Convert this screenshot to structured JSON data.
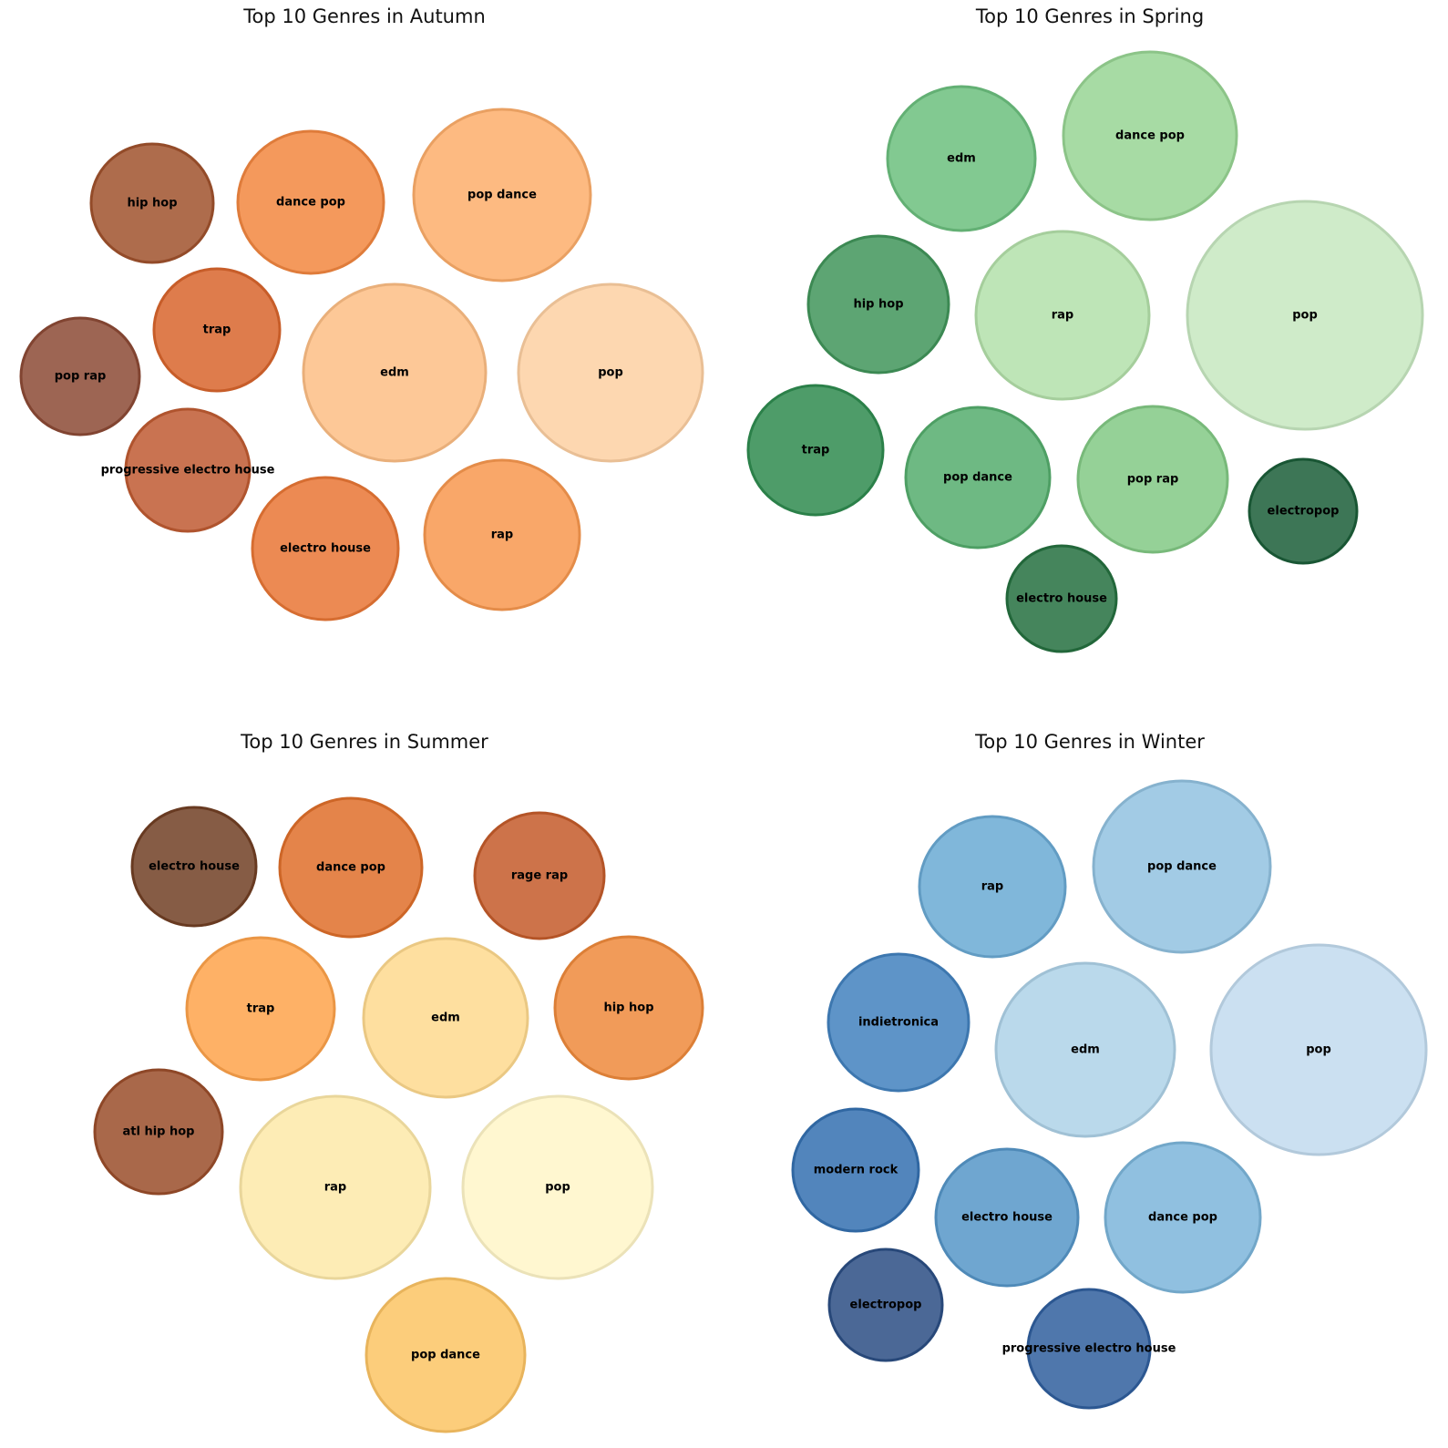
{
  "chart_data": [
    {
      "type": "bubble",
      "title": "Top 10 Genres in Autumn",
      "bubbles": [
        {
          "label": "hip hop",
          "color": "#a0522d"
        },
        {
          "label": "dance pop",
          "color": "#f28740"
        },
        {
          "label": "pop dance",
          "color": "#fdae6b"
        },
        {
          "label": "trap",
          "color": "#d8652d"
        },
        {
          "label": "pop rap",
          "color": "#8c4a35"
        },
        {
          "label": "edm",
          "color": "#fdbe85"
        },
        {
          "label": "pop",
          "color": "#fdd0a2"
        },
        {
          "label": "progressive electro house",
          "color": "#bf5b32"
        },
        {
          "label": "electro house",
          "color": "#e97635"
        },
        {
          "label": "rap",
          "color": "#f8984f"
        }
      ]
    },
    {
      "type": "bubble",
      "title": "Top 10 Genres in Spring",
      "bubbles": [
        {
          "label": "edm",
          "color": "#6cbf7e"
        },
        {
          "label": "dance pop",
          "color": "#98d594"
        },
        {
          "label": "hip hop",
          "color": "#41955a"
        },
        {
          "label": "rap",
          "color": "#b3e0aa"
        },
        {
          "label": "pop",
          "color": "#c7e8c0"
        },
        {
          "label": "trap",
          "color": "#2f8b4f"
        },
        {
          "label": "pop dance",
          "color": "#55ad6d"
        },
        {
          "label": "pop rap",
          "color": "#82c985"
        },
        {
          "label": "electropop",
          "color": "#1b5e38"
        },
        {
          "label": "electro house",
          "color": "#25703f"
        }
      ]
    },
    {
      "type": "bubble",
      "title": "Top 10 Genres in Summer",
      "bubbles": [
        {
          "label": "electro house",
          "color": "#713f24"
        },
        {
          "label": "dance pop",
          "color": "#df6f2a"
        },
        {
          "label": "rage rap",
          "color": "#c45b2a"
        },
        {
          "label": "trap",
          "color": "#fea34b"
        },
        {
          "label": "edm",
          "color": "#fed98e"
        },
        {
          "label": "hip hop",
          "color": "#ef8a3c"
        },
        {
          "label": "atl hip hop",
          "color": "#9a4d2a"
        },
        {
          "label": "rap",
          "color": "#fde9a8"
        },
        {
          "label": "pop",
          "color": "#fff6c8"
        },
        {
          "label": "pop dance",
          "color": "#fcc464"
        }
      ]
    },
    {
      "type": "bubble",
      "title": "Top 10 Genres in Winter",
      "bubbles": [
        {
          "label": "rap",
          "color": "#6aaad4"
        },
        {
          "label": "pop dance",
          "color": "#92c2e0"
        },
        {
          "label": "indietronica",
          "color": "#4281be"
        },
        {
          "label": "edm",
          "color": "#aed2e8"
        },
        {
          "label": "pop",
          "color": "#c2dbee"
        },
        {
          "label": "modern rock",
          "color": "#3470b0"
        },
        {
          "label": "electro house",
          "color": "#5696c8"
        },
        {
          "label": "dance pop",
          "color": "#7cb5db"
        },
        {
          "label": "electropop",
          "color": "#2b4e84"
        },
        {
          "label": "progressive electro house",
          "color": "#305f9e"
        }
      ]
    }
  ]
}
